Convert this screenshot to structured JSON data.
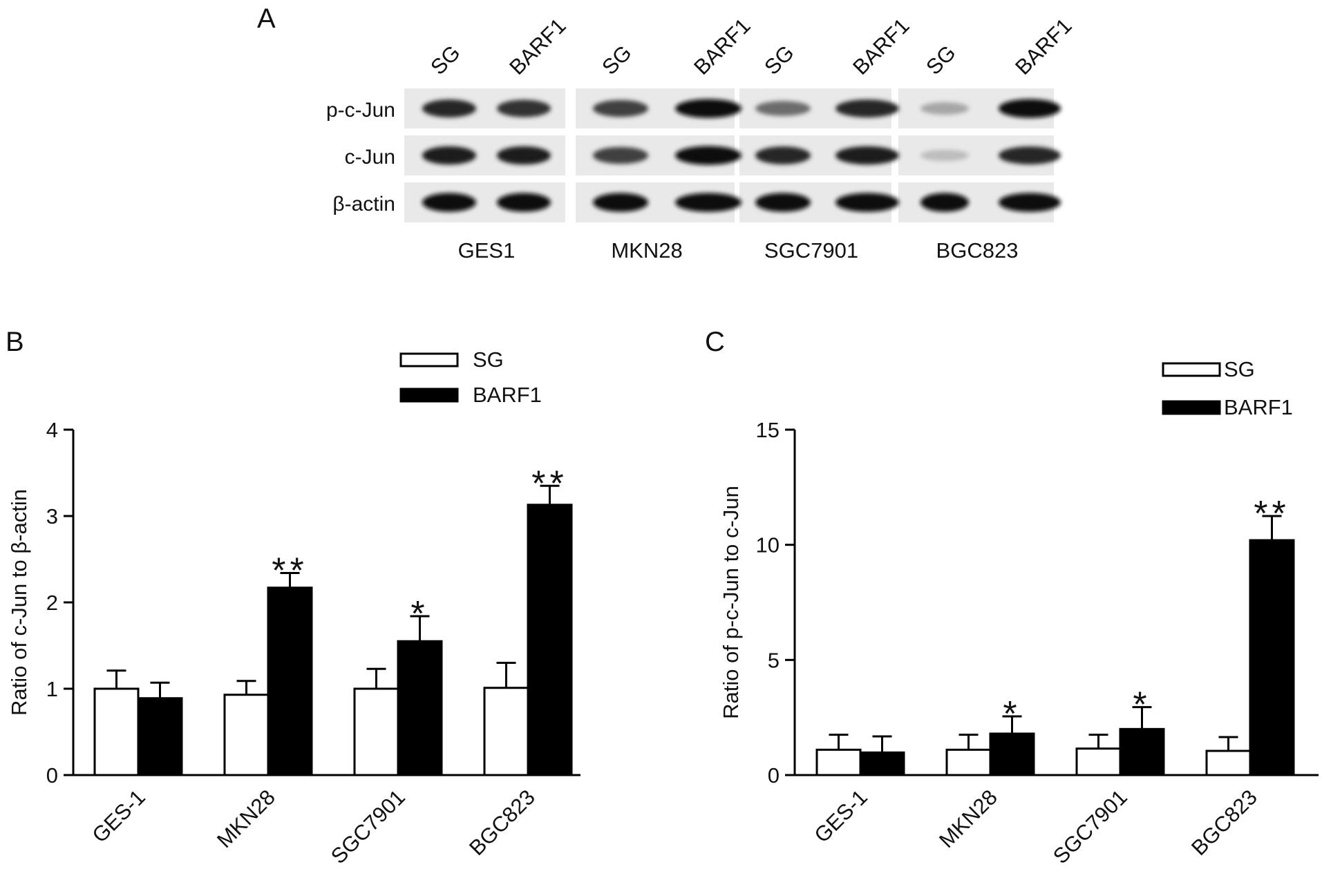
{
  "panels": {
    "a": "A",
    "b": "B",
    "c": "C"
  },
  "blot": {
    "lane_labels": [
      "SG",
      "BARF1",
      "SG",
      "BARF1",
      "SG",
      "BARF1",
      "SG",
      "BARF1"
    ],
    "row_labels": [
      "p-c-Jun",
      "c-Jun",
      "β-actin"
    ],
    "cell_lines": [
      "GES1",
      "MKN28",
      "SGC7901",
      "BGC823"
    ],
    "band_intensity": {
      "p-c-Jun": [
        0.85,
        0.8,
        0.75,
        0.95,
        0.55,
        0.85,
        0.3,
        0.95
      ],
      "c-Jun": [
        0.9,
        0.9,
        0.75,
        0.95,
        0.85,
        0.9,
        0.2,
        0.85
      ],
      "β-actin": [
        0.95,
        0.95,
        0.95,
        0.95,
        0.95,
        0.95,
        0.95,
        0.95
      ]
    }
  },
  "chart_data": [
    {
      "type": "bar",
      "categories": [
        "GES-1",
        "MKN28",
        "SGC7901",
        "BGC823"
      ],
      "series": [
        {
          "name": "SG",
          "values": [
            1.0,
            0.93,
            1.0,
            1.01
          ],
          "errors": [
            0.21,
            0.16,
            0.23,
            0.29
          ],
          "fill": "#ffffff"
        },
        {
          "name": "BARF1",
          "values": [
            0.89,
            2.17,
            1.55,
            3.13
          ],
          "errors": [
            0.18,
            0.17,
            0.29,
            0.22
          ],
          "fill": "#000000"
        }
      ],
      "significance": [
        "",
        "**",
        "*",
        "**"
      ],
      "ylabel": "Ratio of c-Jun to β-actin",
      "ylim": [
        0,
        4
      ],
      "yticks": [
        "0",
        "1",
        "2",
        "3",
        "4"
      ],
      "legend_position": "top-right"
    },
    {
      "type": "bar",
      "categories": [
        "GES-1",
        "MKN28",
        "SGC7901",
        "BGC823"
      ],
      "series": [
        {
          "name": "SG",
          "values": [
            1.1,
            1.1,
            1.15,
            1.05
          ],
          "errors": [
            0.65,
            0.65,
            0.6,
            0.6
          ],
          "fill": "#ffffff"
        },
        {
          "name": "BARF1",
          "values": [
            0.98,
            1.8,
            2.0,
            10.2
          ],
          "errors": [
            0.7,
            0.75,
            0.95,
            1.05
          ],
          "fill": "#000000"
        }
      ],
      "significance": [
        "",
        "*",
        "*",
        "**"
      ],
      "ylabel": "Ratio of p-c-Jun to c-Jun",
      "ylim": [
        0,
        15
      ],
      "yticks": [
        "0",
        "5",
        "10",
        "15"
      ],
      "legend_position": "top-right"
    }
  ]
}
